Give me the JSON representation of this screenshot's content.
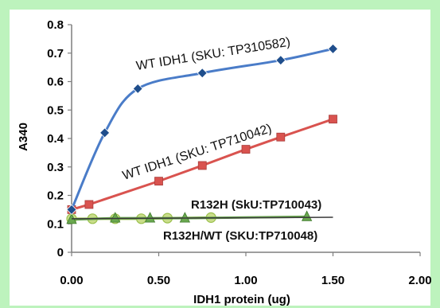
{
  "chart_data": {
    "type": "line",
    "xlabel": "IDH1 protein (ug)",
    "ylabel": "A340",
    "xlim": [
      0,
      2
    ],
    "ylim": [
      0,
      0.8
    ],
    "x_ticks": [
      "0.00",
      "0.50",
      "1.00",
      "1.50",
      "2.00"
    ],
    "y_ticks": [
      "0",
      "0.1",
      "0.2",
      "0.3",
      "0.4",
      "0.5",
      "0.6",
      "0.7",
      "0.8"
    ],
    "grid": false,
    "legend": "none",
    "annotations": [
      "WT IDH1 (SKU: TP310582)",
      "WT IDH1 (SKU: TP710042)",
      "R132H (SkU:TP710043)",
      "R132H/WT (SKU:TP710048)"
    ],
    "series": [
      {
        "name": "WT IDH1 (SKU: TP310582)",
        "color": "#4a7cc8",
        "marker": "diamond",
        "x": [
          0.0,
          0.19,
          0.38,
          0.75,
          1.2,
          1.5
        ],
        "y": [
          0.15,
          0.42,
          0.575,
          0.63,
          0.675,
          0.715
        ]
      },
      {
        "name": "WT IDH1 (SKU: TP710042)",
        "color": "#d9534f",
        "marker": "square",
        "x": [
          0.0,
          0.1,
          0.5,
          0.75,
          1.0,
          1.2,
          1.5
        ],
        "y": [
          0.15,
          0.168,
          0.25,
          0.305,
          0.362,
          0.405,
          0.468
        ]
      },
      {
        "name": "R132H (SkU:TP710043)",
        "color": "#6aa84f",
        "marker": "triangle",
        "x": [
          0.0,
          0.25,
          0.45,
          0.65,
          1.35
        ],
        "y": [
          0.115,
          0.12,
          0.12,
          0.12,
          0.125
        ]
      },
      {
        "name": "R132H/WT (SKU:TP710048)",
        "color": "#9bc04d",
        "marker": "circle",
        "x": [
          0.0,
          0.12,
          0.25,
          0.4,
          0.55,
          0.8
        ],
        "y": [
          0.118,
          0.118,
          0.118,
          0.118,
          0.12,
          0.122
        ]
      }
    ]
  }
}
